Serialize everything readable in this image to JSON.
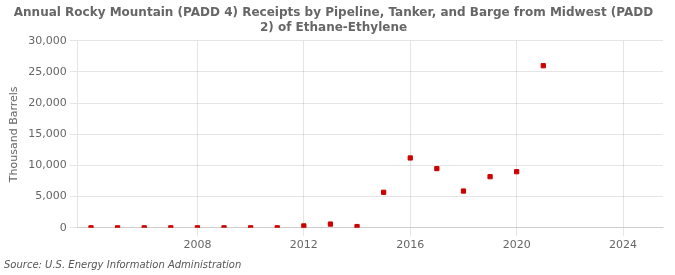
{
  "chart_data": {
    "type": "scatter",
    "title": "Annual Rocky Mountain (PADD 4) Receipts by Pipeline, Tanker, and Barge from Midwest (PADD\n2) of Ethane-Ethylene",
    "ylabel": "Thousand Barrels",
    "source": "Source: U.S. Energy Information Administration",
    "x": [
      2004,
      2005,
      2006,
      2007,
      2008,
      2009,
      2010,
      2011,
      2012,
      2013,
      2014,
      2015,
      2016,
      2017,
      2018,
      2019,
      2020,
      2021
    ],
    "values": [
      0,
      0,
      0,
      0,
      0,
      0,
      0,
      0,
      300,
      600,
      200,
      5700,
      11200,
      9500,
      5900,
      8200,
      9000,
      26000
    ],
    "color": "#cc0000",
    "marker": "square",
    "xlim": [
      2003.5,
      2025.5
    ],
    "xticks": [
      2008,
      2012,
      2016,
      2020,
      2024
    ],
    "ylim": [
      0,
      30000
    ],
    "yticks": [
      0,
      {
        "value": 5000,
        "label": "5,000"
      },
      {
        "value": 10000,
        "label": "10,000"
      },
      {
        "value": 15000,
        "label": "15,000"
      },
      {
        "value": 20000,
        "label": "20,000"
      },
      {
        "value": 25000,
        "label": "25,000"
      },
      {
        "value": 30000,
        "label": "30,000"
      }
    ],
    "grid": true
  }
}
